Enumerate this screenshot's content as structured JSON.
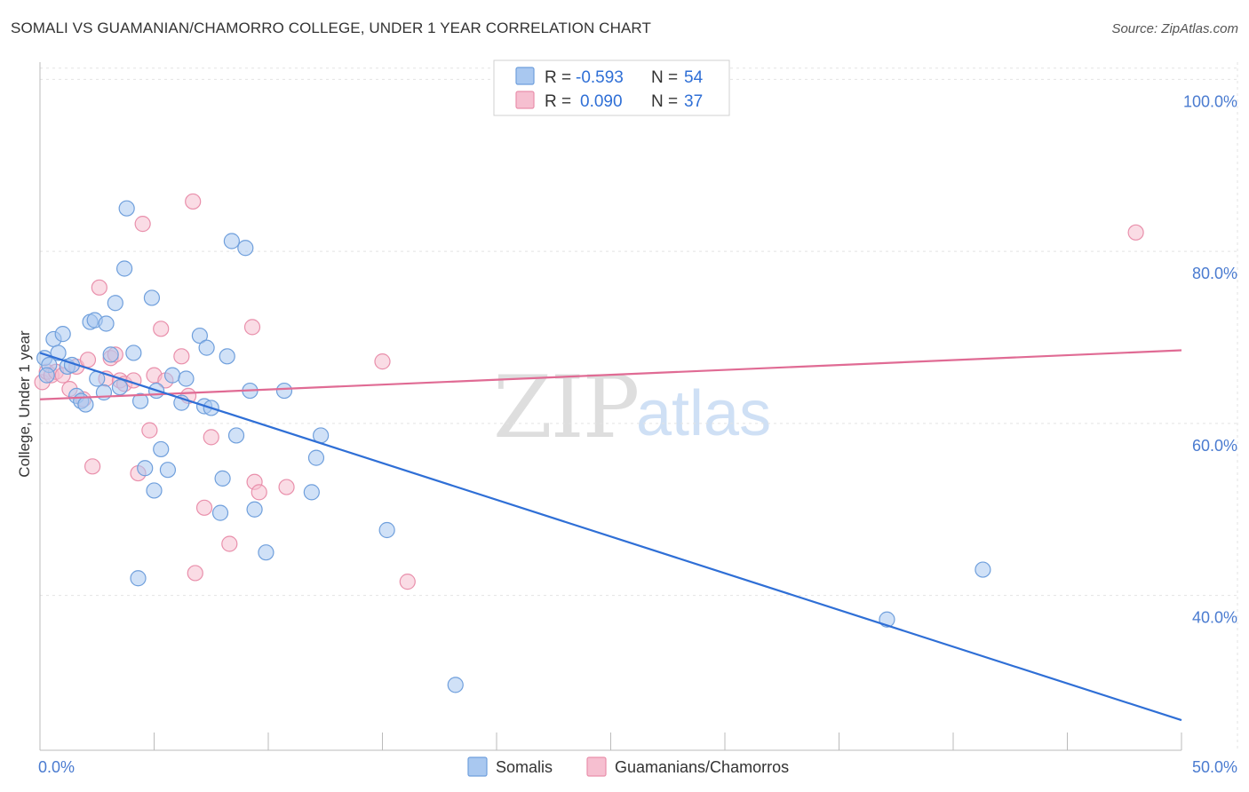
{
  "title": "SOMALI VS GUAMANIAN/CHAMORRO COLLEGE, UNDER 1 YEAR CORRELATION CHART",
  "source": "Source: ZipAtlas.com",
  "watermark": {
    "zip": "ZIP",
    "atlas": "atlas"
  },
  "colors": {
    "blue_fill": "#a9c8f0",
    "blue_stroke": "#6f9fdc",
    "blue_line": "#2f6fd6",
    "pink_fill": "#f6bfd0",
    "pink_stroke": "#e98fab",
    "pink_line": "#e06b94",
    "tick_color": "#4a7bd0",
    "grid": "#e3e3e3"
  },
  "legend": {
    "rows": [
      {
        "r_label": "R =",
        "r_value": "-0.593",
        "n_label": "N =",
        "n_value": "54"
      },
      {
        "r_label": "R =",
        "r_value": "0.090",
        "n_label": "N =",
        "n_value": "37"
      }
    ]
  },
  "bottom_legend": [
    "Somalis",
    "Guamanians/Chamorros"
  ],
  "chart_data": {
    "type": "scatter",
    "title": "SOMALI VS GUAMANIAN/CHAMORRO COLLEGE, UNDER 1 YEAR CORRELATION CHART",
    "xlabel": "",
    "ylabel": "College, Under 1 year",
    "xlim": [
      0,
      50
    ],
    "ylim": [
      22,
      102
    ],
    "x_tick_labels": [
      "0.0%",
      "50.0%"
    ],
    "y_ticks": [
      40,
      60,
      80,
      100
    ],
    "y_tick_labels": [
      "40.0%",
      "60.0%",
      "80.0%",
      "100.0%"
    ],
    "grid": true,
    "legend_position": "top-center",
    "series": [
      {
        "name": "Somalis",
        "color": "#a9c8f0",
        "r": -0.593,
        "n": 54,
        "trend": {
          "x": [
            0,
            50
          ],
          "y": [
            68.2,
            25.5
          ]
        },
        "points": [
          [
            0.2,
            67.6
          ],
          [
            0.4,
            66.8
          ],
          [
            0.6,
            69.8
          ],
          [
            0.8,
            68.2
          ],
          [
            1.0,
            70.4
          ],
          [
            1.2,
            66.6
          ],
          [
            1.6,
            63.2
          ],
          [
            1.8,
            62.6
          ],
          [
            2.0,
            62.2
          ],
          [
            2.2,
            71.8
          ],
          [
            2.4,
            72.0
          ],
          [
            2.5,
            65.2
          ],
          [
            2.8,
            63.6
          ],
          [
            2.9,
            71.6
          ],
          [
            3.1,
            68.0
          ],
          [
            3.3,
            74.0
          ],
          [
            3.5,
            64.2
          ],
          [
            3.7,
            78.0
          ],
          [
            3.8,
            85.0
          ],
          [
            4.1,
            68.2
          ],
          [
            4.3,
            42.0
          ],
          [
            4.4,
            62.6
          ],
          [
            4.6,
            54.8
          ],
          [
            4.9,
            74.6
          ],
          [
            5.0,
            52.2
          ],
          [
            5.1,
            63.8
          ],
          [
            5.3,
            57.0
          ],
          [
            5.6,
            54.6
          ],
          [
            5.8,
            65.6
          ],
          [
            6.2,
            62.4
          ],
          [
            6.4,
            65.2
          ],
          [
            7.0,
            70.2
          ],
          [
            7.2,
            62.0
          ],
          [
            7.3,
            68.8
          ],
          [
            7.5,
            61.8
          ],
          [
            7.9,
            49.6
          ],
          [
            8.0,
            53.6
          ],
          [
            8.2,
            67.8
          ],
          [
            8.4,
            81.2
          ],
          [
            8.6,
            58.6
          ],
          [
            9.0,
            80.4
          ],
          [
            9.2,
            63.8
          ],
          [
            9.4,
            50.0
          ],
          [
            9.9,
            45.0
          ],
          [
            10.7,
            63.8
          ],
          [
            11.9,
            52.0
          ],
          [
            12.1,
            56.0
          ],
          [
            12.3,
            58.6
          ],
          [
            15.2,
            47.6
          ],
          [
            18.2,
            29.6
          ],
          [
            37.1,
            37.2
          ],
          [
            41.3,
            43.0
          ],
          [
            0.3,
            65.6
          ],
          [
            1.4,
            66.8
          ]
        ]
      },
      {
        "name": "Guamanians/Chamorros",
        "color": "#f6bfd0",
        "r": 0.09,
        "n": 37,
        "trend": {
          "x": [
            0,
            50
          ],
          "y": [
            62.8,
            68.5
          ]
        },
        "points": [
          [
            0.1,
            64.8
          ],
          [
            0.3,
            66.0
          ],
          [
            0.5,
            65.6
          ],
          [
            0.7,
            66.0
          ],
          [
            1.0,
            65.6
          ],
          [
            1.3,
            64.0
          ],
          [
            1.6,
            66.6
          ],
          [
            1.9,
            62.8
          ],
          [
            2.1,
            67.4
          ],
          [
            2.3,
            55.0
          ],
          [
            2.6,
            75.8
          ],
          [
            2.9,
            65.2
          ],
          [
            3.1,
            67.6
          ],
          [
            3.3,
            68.0
          ],
          [
            3.5,
            65.0
          ],
          [
            3.7,
            64.6
          ],
          [
            4.1,
            65.0
          ],
          [
            4.3,
            54.2
          ],
          [
            4.5,
            83.2
          ],
          [
            4.8,
            59.2
          ],
          [
            5.0,
            65.6
          ],
          [
            5.3,
            71.0
          ],
          [
            5.5,
            65.0
          ],
          [
            6.2,
            67.8
          ],
          [
            6.5,
            63.2
          ],
          [
            6.7,
            85.8
          ],
          [
            6.8,
            42.6
          ],
          [
            7.2,
            50.2
          ],
          [
            7.5,
            58.4
          ],
          [
            8.3,
            46.0
          ],
          [
            9.3,
            71.2
          ],
          [
            9.4,
            53.2
          ],
          [
            9.6,
            52.0
          ],
          [
            10.8,
            52.6
          ],
          [
            15.0,
            67.2
          ],
          [
            16.1,
            41.6
          ],
          [
            48.0,
            82.2
          ]
        ]
      }
    ]
  }
}
